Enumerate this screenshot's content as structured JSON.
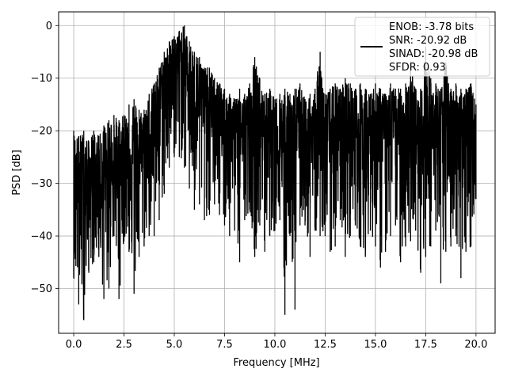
{
  "chart_data": {
    "type": "line",
    "title": "",
    "xlabel": "Frequency [MHz]",
    "ylabel": "PSD [dB]",
    "xlim": [
      -0.75,
      20.95
    ],
    "ylim": [
      -58.5,
      2.6
    ],
    "xticks": [
      0.0,
      2.5,
      5.0,
      7.5,
      10.0,
      12.5,
      15.0,
      17.5,
      20.0
    ],
    "xtick_labels": [
      "0.0",
      "2.5",
      "5.0",
      "7.5",
      "10.0",
      "12.5",
      "15.0",
      "17.5",
      "20.0"
    ],
    "yticks": [
      0,
      -10,
      -20,
      -30,
      -40,
      -50
    ],
    "ytick_labels": [
      "0",
      "−10",
      "−20",
      "−30",
      "−40",
      "−50"
    ],
    "grid": true,
    "legend_position": "top-right",
    "legend": [
      "ENOB: -3.78 bits",
      "SNR: -20.92 dB",
      "SINAD: -20.98 dB",
      "SFDR: 0.93"
    ],
    "series": [
      {
        "color": "#000000",
        "x": [
          0.0,
          0.25,
          0.5,
          0.75,
          1.0,
          1.25,
          1.5,
          1.75,
          2.0,
          2.25,
          2.5,
          2.75,
          3.0,
          3.25,
          3.5,
          3.75,
          4.0,
          4.25,
          4.5,
          4.75,
          5.0,
          5.25,
          5.5,
          5.75,
          6.0,
          6.25,
          6.5,
          6.75,
          7.0,
          7.25,
          7.5,
          7.75,
          8.0,
          8.25,
          8.5,
          8.75,
          9.0,
          9.25,
          9.5,
          9.75,
          10.0,
          10.25,
          10.5,
          10.75,
          11.0,
          11.25,
          11.5,
          11.75,
          12.0,
          12.25,
          12.5,
          12.75,
          13.0,
          13.25,
          13.5,
          13.75,
          14.0,
          14.25,
          14.5,
          14.75,
          15.0,
          15.25,
          15.5,
          15.75,
          16.0,
          16.25,
          16.5,
          16.75,
          17.0,
          17.25,
          17.5,
          17.75,
          18.0,
          18.25,
          18.5,
          18.75,
          19.0,
          19.25,
          19.5,
          19.75,
          20.0
        ],
        "y": [
          -30,
          -29,
          -31,
          -30,
          -29,
          -31,
          -28,
          -30,
          -26,
          -27,
          -25,
          -26,
          -24,
          -25,
          -23,
          -21,
          -18,
          -15,
          -12,
          -9,
          -7,
          -6,
          -7,
          -10,
          -12,
          -14,
          -15,
          -16,
          -17,
          -18,
          -19,
          -19,
          -20,
          -20,
          -19,
          -21,
          -20,
          -21,
          -20,
          -22,
          -21,
          -22,
          -22,
          -21,
          -23,
          -22,
          -21,
          -22,
          -21,
          -22,
          -21,
          -20,
          -22,
          -21,
          -20,
          -22,
          -21,
          -20,
          -21,
          -20,
          -19,
          -21,
          -20,
          -19,
          -21,
          -20,
          -19,
          -20,
          -21,
          -20,
          -19,
          -20,
          -21,
          -20,
          -19,
          -20,
          -21,
          -20,
          -19,
          -20,
          -21
        ],
        "y_min": [
          -48,
          -53,
          -56,
          -47,
          -45,
          -44,
          -52,
          -50,
          -40,
          -52,
          -41,
          -43,
          -51,
          -44,
          -42,
          -40,
          -40,
          -37,
          -32,
          -27,
          -25,
          -25,
          -27,
          -31,
          -35,
          -34,
          -37,
          -36,
          -34,
          -36,
          -38,
          -40,
          -39,
          -45,
          -37,
          -35,
          -44,
          -38,
          -43,
          -40,
          -39,
          -37,
          -55,
          -40,
          -54,
          -38,
          -38,
          -44,
          -39,
          -40,
          -40,
          -43,
          -42,
          -37,
          -44,
          -40,
          -38,
          -42,
          -44,
          -39,
          -42,
          -46,
          -43,
          -40,
          -38,
          -45,
          -42,
          -41,
          -39,
          -47,
          -44,
          -42,
          -39,
          -49,
          -43,
          -42,
          -40,
          -48,
          -43,
          -42,
          -33
        ],
        "y_max": [
          -20,
          -21,
          -20,
          -22,
          -20,
          -21,
          -19,
          -18,
          -17,
          -18,
          -17,
          -15,
          -14,
          -16,
          -16,
          -13,
          -11,
          -8,
          -5,
          -3,
          -2,
          -1,
          0,
          -3,
          -5,
          -6,
          -8,
          -8,
          -10,
          -11,
          -12,
          -13,
          -14,
          -12,
          -13,
          -11,
          -6,
          -10,
          -13,
          -12,
          -14,
          -13,
          -12,
          -13,
          -12,
          -11,
          -14,
          -13,
          -12,
          -5,
          -13,
          -12,
          -11,
          -12,
          -10,
          -11,
          -12,
          -11,
          -12,
          -13,
          -11,
          -12,
          -13,
          -11,
          -12,
          -12,
          -11,
          -8,
          -12,
          -12,
          -4,
          -10,
          -11,
          -12,
          -7,
          -12,
          -11,
          -12,
          -12,
          -11,
          -15
        ]
      }
    ]
  }
}
